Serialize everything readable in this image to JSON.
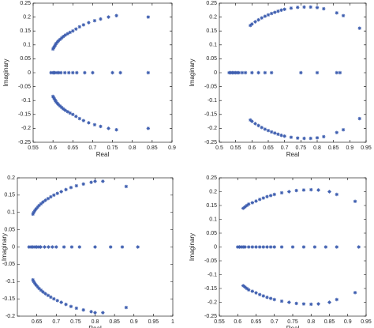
{
  "chart_data": [
    {
      "type": "scatter",
      "xlabel": "Real",
      "ylabel": "Imaginary",
      "xlim": [
        0.55,
        0.9
      ],
      "ylim": [
        -0.25,
        0.25
      ],
      "xticks": [
        0.55,
        0.6,
        0.65,
        0.7,
        0.75,
        0.8,
        0.85,
        0.9
      ],
      "yticks": [
        -0.25,
        -0.2,
        -0.15,
        -0.1,
        -0.05,
        0,
        0.05,
        0.1,
        0.15,
        0.2,
        0.25
      ],
      "series": [
        {
          "color": "#3f5fb0",
          "x": [
            0.595,
            0.6,
            0.602,
            0.605,
            0.61,
            0.615,
            0.62,
            0.63,
            0.64,
            0.65,
            0.66,
            0.68,
            0.7,
            0.75,
            0.77,
            0.84
          ],
          "values": [
            0,
            0,
            0,
            0,
            0,
            0,
            0,
            0,
            0,
            0,
            0,
            0,
            0,
            0,
            0,
            0
          ]
        },
        {
          "color": "#3f5fb0",
          "x": [
            0.6,
            0.602,
            0.604,
            0.606,
            0.608,
            0.611,
            0.614,
            0.618,
            0.622,
            0.626,
            0.631,
            0.637,
            0.643,
            0.65,
            0.658,
            0.667,
            0.677,
            0.69,
            0.705,
            0.72,
            0.74,
            0.76,
            0.84
          ],
          "values": [
            0.085,
            0.09,
            0.095,
            0.1,
            0.105,
            0.11,
            0.115,
            0.12,
            0.125,
            0.13,
            0.135,
            0.14,
            0.145,
            0.15,
            0.157,
            0.165,
            0.172,
            0.18,
            0.187,
            0.193,
            0.2,
            0.205,
            0.2
          ]
        },
        {
          "color": "#3f5fb0",
          "x": [
            0.6,
            0.602,
            0.604,
            0.606,
            0.608,
            0.611,
            0.614,
            0.618,
            0.622,
            0.626,
            0.631,
            0.637,
            0.643,
            0.65,
            0.658,
            0.667,
            0.677,
            0.69,
            0.705,
            0.72,
            0.74,
            0.76,
            0.84
          ],
          "values": [
            -0.085,
            -0.09,
            -0.095,
            -0.1,
            -0.105,
            -0.11,
            -0.115,
            -0.12,
            -0.125,
            -0.13,
            -0.135,
            -0.14,
            -0.145,
            -0.15,
            -0.157,
            -0.165,
            -0.172,
            -0.18,
            -0.187,
            -0.193,
            -0.2,
            -0.205,
            -0.2
          ]
        }
      ]
    },
    {
      "type": "scatter",
      "xlabel": "Real",
      "ylabel": "Imaginary",
      "xlim": [
        0.5,
        0.95
      ],
      "ylim": [
        -0.25,
        0.25
      ],
      "xticks": [
        0.5,
        0.55,
        0.6,
        0.65,
        0.7,
        0.75,
        0.8,
        0.85,
        0.9,
        0.95
      ],
      "yticks": [
        -0.25,
        -0.2,
        -0.15,
        -0.1,
        -0.05,
        0,
        0.05,
        0.1,
        0.15,
        0.2,
        0.25
      ],
      "series": [
        {
          "color": "#3f5fb0",
          "x": [
            0.53,
            0.535,
            0.54,
            0.545,
            0.55,
            0.555,
            0.56,
            0.57,
            0.58,
            0.6,
            0.62,
            0.64,
            0.66,
            0.75,
            0.8,
            0.86,
            0.87
          ],
          "values": [
            0,
            0,
            0,
            0,
            0,
            0,
            0,
            0,
            0,
            0,
            0,
            0,
            0,
            0,
            0,
            0,
            0
          ]
        },
        {
          "color": "#3f5fb0",
          "x": [
            0.595,
            0.6,
            0.61,
            0.62,
            0.63,
            0.64,
            0.65,
            0.66,
            0.67,
            0.68,
            0.69,
            0.7,
            0.72,
            0.74,
            0.76,
            0.78,
            0.8,
            0.82,
            0.86,
            0.88,
            0.93
          ],
          "values": [
            0.17,
            0.175,
            0.183,
            0.19,
            0.197,
            0.203,
            0.208,
            0.213,
            0.217,
            0.221,
            0.225,
            0.228,
            0.232,
            0.235,
            0.236,
            0.236,
            0.234,
            0.23,
            0.215,
            0.205,
            0.16
          ]
        },
        {
          "color": "#3f5fb0",
          "x": [
            0.595,
            0.6,
            0.61,
            0.62,
            0.63,
            0.64,
            0.65,
            0.66,
            0.67,
            0.68,
            0.69,
            0.7,
            0.72,
            0.74,
            0.76,
            0.78,
            0.8,
            0.82,
            0.86,
            0.88,
            0.93
          ],
          "values": [
            -0.17,
            -0.175,
            -0.183,
            -0.19,
            -0.197,
            -0.203,
            -0.208,
            -0.213,
            -0.217,
            -0.221,
            -0.225,
            -0.228,
            -0.232,
            -0.235,
            -0.236,
            -0.236,
            -0.234,
            -0.23,
            -0.215,
            -0.205,
            -0.165
          ]
        }
      ]
    },
    {
      "type": "scatter",
      "xlabel": "Real",
      "ylabel": "Imaginary",
      "xlim": [
        0.6,
        1
      ],
      "ylim": [
        -0.2,
        0.2
      ],
      "xticks": [
        0.65,
        0.7,
        0.75,
        0.8,
        0.85,
        0.9,
        0.95,
        1
      ],
      "yticks": [
        -0.2,
        -0.15,
        -0.1,
        -0.05,
        0,
        0.05,
        0.1,
        0.15,
        0.2
      ],
      "series": [
        {
          "color": "#3f5fb0",
          "x": [
            0.63,
            0.635,
            0.64,
            0.645,
            0.65,
            0.655,
            0.66,
            0.67,
            0.68,
            0.69,
            0.7,
            0.72,
            0.74,
            0.76,
            0.8,
            0.84,
            0.87,
            0.91
          ],
          "values": [
            0,
            0,
            0,
            0,
            0,
            0,
            0,
            0,
            0,
            0,
            0,
            0,
            0,
            0,
            0,
            0,
            0,
            0
          ]
        },
        {
          "color": "#3f5fb0",
          "x": [
            0.64,
            0.642,
            0.645,
            0.648,
            0.652,
            0.656,
            0.661,
            0.666,
            0.672,
            0.679,
            0.686,
            0.694,
            0.703,
            0.713,
            0.725,
            0.738,
            0.752,
            0.77,
            0.79,
            0.8,
            0.82,
            0.88
          ],
          "values": [
            0.095,
            0.1,
            0.105,
            0.11,
            0.115,
            0.12,
            0.125,
            0.13,
            0.135,
            0.14,
            0.145,
            0.15,
            0.155,
            0.16,
            0.166,
            0.172,
            0.177,
            0.182,
            0.187,
            0.19,
            0.19,
            0.175
          ]
        },
        {
          "color": "#3f5fb0",
          "x": [
            0.64,
            0.642,
            0.645,
            0.648,
            0.652,
            0.656,
            0.661,
            0.666,
            0.672,
            0.679,
            0.686,
            0.694,
            0.703,
            0.713,
            0.725,
            0.738,
            0.752,
            0.77,
            0.79,
            0.8,
            0.82,
            0.88
          ],
          "values": [
            -0.095,
            -0.1,
            -0.105,
            -0.11,
            -0.115,
            -0.12,
            -0.125,
            -0.13,
            -0.135,
            -0.14,
            -0.145,
            -0.15,
            -0.155,
            -0.16,
            -0.166,
            -0.172,
            -0.177,
            -0.182,
            -0.187,
            -0.19,
            -0.19,
            -0.175
          ]
        }
      ]
    },
    {
      "type": "scatter",
      "xlabel": "Real",
      "ylabel": "Imaginary",
      "xlim": [
        0.55,
        0.95
      ],
      "ylim": [
        -0.25,
        0.25
      ],
      "xticks": [
        0.55,
        0.6,
        0.65,
        0.7,
        0.75,
        0.8,
        0.85,
        0.9,
        0.95
      ],
      "yticks": [
        -0.25,
        -0.2,
        -0.15,
        -0.1,
        -0.05,
        0,
        0.05,
        0.1,
        0.15,
        0.2,
        0.25
      ],
      "series": [
        {
          "color": "#3f5fb0",
          "x": [
            0.6,
            0.605,
            0.61,
            0.615,
            0.62,
            0.63,
            0.64,
            0.65,
            0.66,
            0.67,
            0.68,
            0.69,
            0.7,
            0.72,
            0.75,
            0.78,
            0.81,
            0.84,
            0.87,
            0.93
          ],
          "values": [
            0,
            0,
            0,
            0,
            0,
            0,
            0,
            0,
            0,
            0,
            0,
            0,
            0,
            0,
            0,
            0,
            0,
            0,
            0,
            0
          ]
        },
        {
          "color": "#3f5fb0",
          "x": [
            0.615,
            0.62,
            0.625,
            0.63,
            0.64,
            0.65,
            0.66,
            0.67,
            0.68,
            0.69,
            0.7,
            0.72,
            0.74,
            0.76,
            0.78,
            0.8,
            0.82,
            0.85,
            0.87,
            0.92
          ],
          "values": [
            0.14,
            0.145,
            0.15,
            0.155,
            0.16,
            0.166,
            0.172,
            0.177,
            0.182,
            0.186,
            0.19,
            0.196,
            0.2,
            0.204,
            0.206,
            0.207,
            0.206,
            0.2,
            0.19,
            0.165
          ]
        },
        {
          "color": "#3f5fb0",
          "x": [
            0.615,
            0.62,
            0.625,
            0.63,
            0.64,
            0.65,
            0.66,
            0.67,
            0.68,
            0.69,
            0.7,
            0.72,
            0.74,
            0.76,
            0.78,
            0.8,
            0.82,
            0.85,
            0.87,
            0.92
          ],
          "values": [
            -0.14,
            -0.145,
            -0.15,
            -0.155,
            -0.16,
            -0.166,
            -0.172,
            -0.177,
            -0.182,
            -0.186,
            -0.19,
            -0.196,
            -0.2,
            -0.204,
            -0.206,
            -0.207,
            -0.206,
            -0.2,
            -0.19,
            -0.165
          ]
        }
      ]
    }
  ]
}
